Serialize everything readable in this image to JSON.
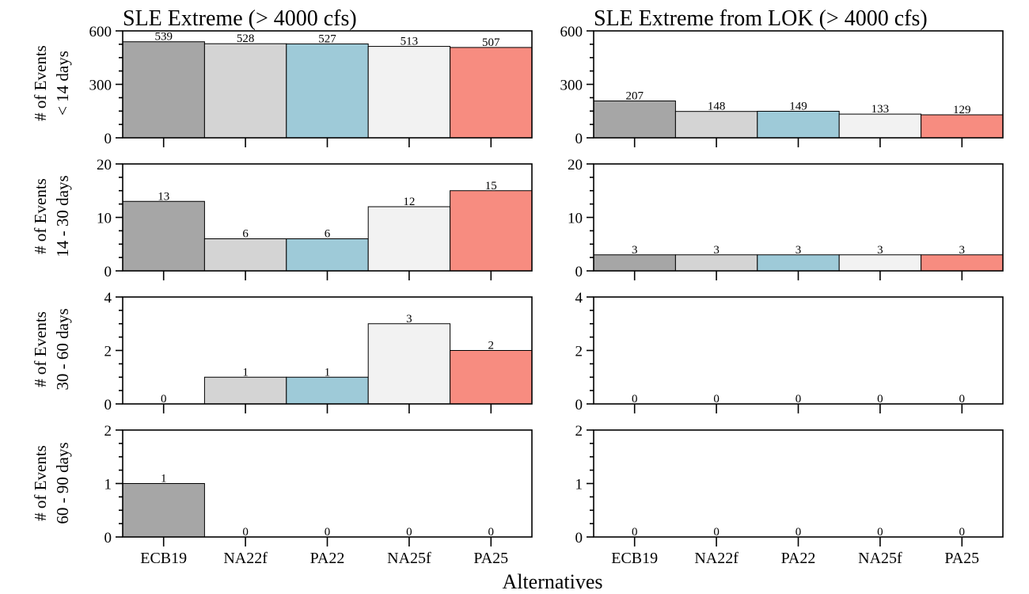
{
  "colors": {
    "ECB19": "#a6a6a6",
    "NA22f": "#d4d4d4",
    "PA22": "#9ecad8",
    "NA25f": "#f2f2f2",
    "PA25": "#f78c80",
    "outline": "#000000"
  },
  "figure": {
    "xlabel": "Alternatives",
    "columns": [
      "SLE Extreme (> 4000 cfs)",
      "SLE Extreme from LOK (> 4000 cfs)"
    ],
    "rows": [
      {
        "ylabel_line1": "# of Events",
        "ylabel_line2": "< 14 days"
      },
      {
        "ylabel_line1": "# of Events",
        "ylabel_line2": "14 - 30 days"
      },
      {
        "ylabel_line1": "# of Events",
        "ylabel_line2": "30 - 60 days"
      },
      {
        "ylabel_line1": "# of Events",
        "ylabel_line2": "60 - 90 days"
      }
    ]
  },
  "chart_data": [
    {
      "type": "bar",
      "title": "SLE Extreme (> 4000 cfs)",
      "ylabel": "# of Events < 14 days",
      "xlabel": "",
      "categories": [
        "ECB19",
        "NA22f",
        "PA22",
        "NA25f",
        "PA25"
      ],
      "values": [
        539,
        528,
        527,
        513,
        507
      ],
      "ylim": [
        0,
        600
      ],
      "yticks": [
        0,
        300,
        600
      ]
    },
    {
      "type": "bar",
      "title": "SLE Extreme from LOK (> 4000 cfs)",
      "ylabel": "",
      "xlabel": "",
      "categories": [
        "ECB19",
        "NA22f",
        "PA22",
        "NA25f",
        "PA25"
      ],
      "values": [
        207,
        148,
        149,
        133,
        129
      ],
      "ylim": [
        0,
        600
      ],
      "yticks": [
        0,
        300,
        600
      ]
    },
    {
      "type": "bar",
      "title": "",
      "ylabel": "# of Events 14 - 30 days",
      "xlabel": "",
      "categories": [
        "ECB19",
        "NA22f",
        "PA22",
        "NA25f",
        "PA25"
      ],
      "values": [
        13,
        6,
        6,
        12,
        15
      ],
      "ylim": [
        0,
        20
      ],
      "yticks": [
        0,
        10,
        20
      ]
    },
    {
      "type": "bar",
      "title": "",
      "ylabel": "",
      "xlabel": "",
      "categories": [
        "ECB19",
        "NA22f",
        "PA22",
        "NA25f",
        "PA25"
      ],
      "values": [
        3,
        3,
        3,
        3,
        3
      ],
      "ylim": [
        0,
        20
      ],
      "yticks": [
        0,
        10,
        20
      ]
    },
    {
      "type": "bar",
      "title": "",
      "ylabel": "# of Events 30 - 60 days",
      "xlabel": "",
      "categories": [
        "ECB19",
        "NA22f",
        "PA22",
        "NA25f",
        "PA25"
      ],
      "values": [
        0,
        1,
        1,
        3,
        2
      ],
      "ylim": [
        0,
        4
      ],
      "yticks": [
        0,
        2,
        4
      ]
    },
    {
      "type": "bar",
      "title": "",
      "ylabel": "",
      "xlabel": "",
      "categories": [
        "ECB19",
        "NA22f",
        "PA22",
        "NA25f",
        "PA25"
      ],
      "values": [
        0,
        0,
        0,
        0,
        0
      ],
      "ylim": [
        0,
        4
      ],
      "yticks": [
        0,
        2,
        4
      ]
    },
    {
      "type": "bar",
      "title": "",
      "ylabel": "# of Events 60 - 90 days",
      "xlabel": "Alternatives",
      "categories": [
        "ECB19",
        "NA22f",
        "PA22",
        "NA25f",
        "PA25"
      ],
      "values": [
        1,
        0,
        0,
        0,
        0
      ],
      "ylim": [
        0,
        2
      ],
      "yticks": [
        0,
        1,
        2
      ]
    },
    {
      "type": "bar",
      "title": "",
      "ylabel": "",
      "xlabel": "Alternatives",
      "categories": [
        "ECB19",
        "NA22f",
        "PA22",
        "NA25f",
        "PA25"
      ],
      "values": [
        0,
        0,
        0,
        0,
        0
      ],
      "ylim": [
        0,
        2
      ],
      "yticks": [
        0,
        1,
        2
      ]
    }
  ]
}
